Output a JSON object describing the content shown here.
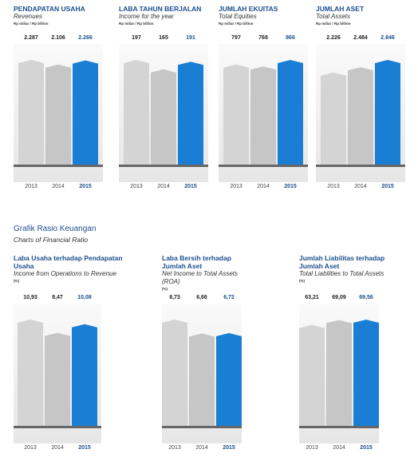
{
  "section": {
    "title": "Grafik Rasio Keuangan",
    "subtitle": "Charts of Financial Ratio"
  },
  "chart_data": [
    {
      "type": "bar",
      "title": "PENDAPATAN USAHA",
      "subtitle": "Revenues",
      "unit": "Rp miliar / Rp billion",
      "categories": [
        "2013",
        "2014",
        "2015"
      ],
      "values": [
        2287,
        2106,
        2266
      ],
      "value_labels": [
        "2.287",
        "2.106",
        "2.266"
      ],
      "colors": [
        "#d4d4d4",
        "#c6c6c6",
        "#1a7fd4"
      ]
    },
    {
      "type": "bar",
      "title": "LABA TAHUN BERJALAN",
      "subtitle": "Income for the year",
      "unit": "Rp miliar / Rp billion",
      "categories": [
        "2013",
        "2014",
        "2015"
      ],
      "values": [
        197,
        165,
        191
      ],
      "colors": [
        "#d4d4d4",
        "#c6c6c6",
        "#1a7fd4"
      ]
    },
    {
      "type": "bar",
      "title": "JUMLAH EKUITAS",
      "subtitle": "Total Equities",
      "unit": "Rp miliar / Rp billion",
      "categories": [
        "2013",
        "2014",
        "2015"
      ],
      "values": [
        797,
        768,
        866
      ],
      "colors": [
        "#d4d4d4",
        "#c6c6c6",
        "#1a7fd4"
      ]
    },
    {
      "type": "bar",
      "title": "JUMLAH ASET",
      "subtitle": "Total Assets",
      "unit": "Rp miliar / Rp billion",
      "categories": [
        "2013",
        "2014",
        "2015"
      ],
      "values": [
        2226,
        2484,
        2846
      ],
      "value_labels": [
        "2.226",
        "2.484",
        "2.846"
      ],
      "colors": [
        "#d4d4d4",
        "#c6c6c6",
        "#1a7fd4"
      ]
    },
    {
      "type": "bar",
      "title": "Laba Usaha terhadap Pendapatan Usaha",
      "subtitle": "Income from Operations to Revenue",
      "unit": "(%)",
      "categories": [
        "2013",
        "2014",
        "2015"
      ],
      "values": [
        10.93,
        8.47,
        10.08
      ],
      "value_labels": [
        "10,93",
        "8,47",
        "10,08"
      ],
      "colors": [
        "#d4d4d4",
        "#c6c6c6",
        "#1a7fd4"
      ]
    },
    {
      "type": "bar",
      "title": "Laba Bersih terhadap Jumlah Aset",
      "subtitle": "Net Income to Total Assets (ROA)",
      "unit": "(%)",
      "categories": [
        "2013",
        "2014",
        "2015"
      ],
      "values": [
        8.73,
        6.66,
        6.72
      ],
      "value_labels": [
        "8,73",
        "6,66",
        "6,72"
      ],
      "colors": [
        "#d4d4d4",
        "#c6c6c6",
        "#1a7fd4"
      ]
    },
    {
      "type": "bar",
      "title": "Jumlah Liabilitas terhadap Jumlah Aset",
      "subtitle": "Total Liabilities to Total Assets",
      "unit": "(%)",
      "categories": [
        "2013",
        "2014",
        "2015"
      ],
      "values": [
        63.21,
        69.09,
        69.56
      ],
      "value_labels": [
        "63,21",
        "69,09",
        "69,56"
      ],
      "colors": [
        "#d4d4d4",
        "#c6c6c6",
        "#1a7fd4"
      ]
    }
  ]
}
